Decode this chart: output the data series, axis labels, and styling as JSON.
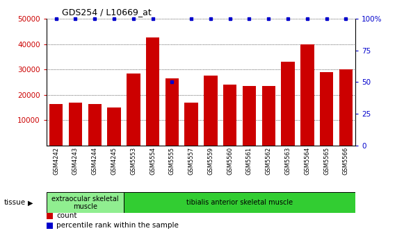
{
  "title": "GDS254 / L10669_at",
  "categories": [
    "GSM4242",
    "GSM4243",
    "GSM4244",
    "GSM4245",
    "GSM5553",
    "GSM5554",
    "GSM5555",
    "GSM5557",
    "GSM5559",
    "GSM5560",
    "GSM5561",
    "GSM5562",
    "GSM5563",
    "GSM5564",
    "GSM5565",
    "GSM5566"
  ],
  "bar_values": [
    16500,
    17000,
    16500,
    15000,
    28500,
    42500,
    26500,
    17000,
    27500,
    24000,
    23500,
    23500,
    33000,
    40000,
    29000,
    30000
  ],
  "percentile_values": [
    100,
    100,
    100,
    100,
    100,
    100,
    50,
    100,
    100,
    100,
    100,
    100,
    100,
    100,
    100,
    100
  ],
  "bar_color": "#cc0000",
  "dot_color": "#0000cc",
  "ylim_left": [
    0,
    50000
  ],
  "ylim_right": [
    0,
    100
  ],
  "yticks_left": [
    10000,
    20000,
    30000,
    40000,
    50000
  ],
  "yticks_right": [
    0,
    25,
    50,
    75,
    100
  ],
  "ytick_right_labels": [
    "0",
    "25",
    "50",
    "75",
    "100%"
  ],
  "tissue_groups": [
    {
      "label": "extraocular skeletal\nmuscle",
      "start": 0,
      "end": 4,
      "color": "#90ee90"
    },
    {
      "label": "tibialis anterior skeletal muscle",
      "start": 4,
      "end": 16,
      "color": "#32cd32"
    }
  ],
  "tissue_label": "tissue",
  "legend_count_label": "count",
  "legend_percentile_label": "percentile rank within the sample",
  "background_color": "#ffffff",
  "tick_label_color_left": "#cc0000",
  "tick_label_color_right": "#0000cc",
  "title_color": "#000000",
  "bar_width": 0.7,
  "xtick_bg": "#c8c8c8"
}
